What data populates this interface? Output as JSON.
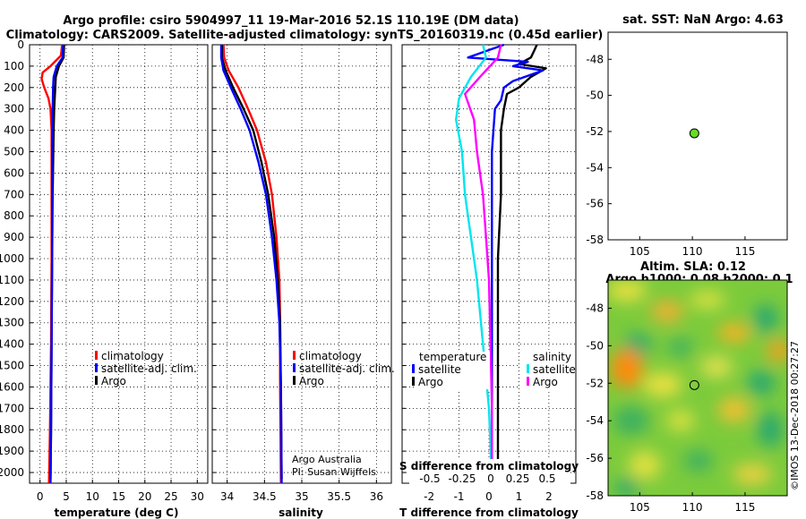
{
  "header": {
    "line1": "Argo profile: csiro 5904997_11 19-Mar-2016 52.1S 110.19E (DM data)",
    "line2": "Climatology: CARS2009. Satellite-adjusted climatology: synTS_20160319.nc (0.45d earlier)"
  },
  "colors": {
    "climatology": "#ff0000",
    "satellite": "#0000ff",
    "argo": "#000000",
    "sat_temp": "#00e5ee",
    "sat_sal": "#ff00ff",
    "marker": "#66dd22"
  },
  "depth_axis": {
    "min": 0,
    "max": 2050,
    "ticks": [
      "0",
      "100",
      "200",
      "300",
      "400",
      "500",
      "600",
      "700",
      "800",
      "900",
      "1000",
      "1100",
      "1200",
      "1300",
      "1400",
      "1500",
      "1600",
      "1700",
      "1800",
      "1900",
      "2000"
    ]
  },
  "chart_data": [
    {
      "type": "line",
      "id": "temperature",
      "xlabel": "temperature (deg C)",
      "xlim": [
        -2,
        32
      ],
      "xticks": [
        0,
        5,
        10,
        15,
        20,
        25,
        30
      ],
      "ylim": [
        0,
        2050
      ],
      "legend": {
        "placement": "middle-right",
        "entries": [
          "climatology",
          "satellite-adj. clim.",
          "Argo"
        ]
      },
      "series": [
        {
          "name": "climatology",
          "color": "#ff0000",
          "points": [
            [
              4.2,
              0
            ],
            [
              4.0,
              50
            ],
            [
              2.0,
              100
            ],
            [
              0.5,
              130
            ],
            [
              0.3,
              160
            ],
            [
              0.8,
              200
            ],
            [
              1.6,
              250
            ],
            [
              2.0,
              300
            ],
            [
              2.2,
              400
            ],
            [
              2.2,
              600
            ],
            [
              2.2,
              1000
            ],
            [
              2.1,
              1400
            ],
            [
              1.9,
              1800
            ],
            [
              1.7,
              2050
            ]
          ]
        },
        {
          "name": "Argo",
          "color": "#000000",
          "points": [
            [
              4.6,
              0
            ],
            [
              4.5,
              60
            ],
            [
              3.6,
              100
            ],
            [
              3.0,
              150
            ],
            [
              2.9,
              200
            ],
            [
              2.7,
              300
            ],
            [
              2.6,
              400
            ],
            [
              2.4,
              700
            ],
            [
              2.3,
              1000
            ],
            [
              2.2,
              1400
            ],
            [
              2.1,
              1800
            ],
            [
              2.0,
              2030
            ]
          ]
        },
        {
          "name": "satellite-adj. clim.",
          "color": "#0000ff",
          "points": [
            [
              4.4,
              0
            ],
            [
              4.3,
              60
            ],
            [
              3.2,
              100
            ],
            [
              2.6,
              150
            ],
            [
              2.5,
              200
            ],
            [
              2.4,
              300
            ],
            [
              2.3,
              500
            ],
            [
              2.3,
              1000
            ],
            [
              2.2,
              1400
            ],
            [
              2.1,
              1800
            ],
            [
              2.0,
              2050
            ]
          ]
        }
      ]
    },
    {
      "type": "line",
      "id": "salinity",
      "xlabel": "salinity",
      "xlim": [
        33.8,
        36.2
      ],
      "xticks": [
        34,
        34.5,
        35,
        35.5,
        36
      ],
      "ylim": [
        0,
        2050
      ],
      "legend": {
        "placement": "middle-right",
        "entries": [
          "climatology",
          "satellite-adj. clim.",
          "Argo"
        ]
      },
      "annotations": [
        "Argo Australia",
        "PI: Susan Wijffels"
      ],
      "series": [
        {
          "name": "climatology",
          "color": "#ff0000",
          "points": [
            [
              33.95,
              0
            ],
            [
              33.96,
              60
            ],
            [
              34.02,
              120
            ],
            [
              34.15,
              200
            ],
            [
              34.28,
              300
            ],
            [
              34.4,
              400
            ],
            [
              34.52,
              550
            ],
            [
              34.6,
              700
            ],
            [
              34.66,
              900
            ],
            [
              34.7,
              1100
            ],
            [
              34.71,
              1300
            ],
            [
              34.71,
              1600
            ],
            [
              34.72,
              2050
            ]
          ]
        },
        {
          "name": "Argo",
          "color": "#000000",
          "points": [
            [
              33.93,
              0
            ],
            [
              33.93,
              60
            ],
            [
              33.98,
              120
            ],
            [
              34.08,
              200
            ],
            [
              34.22,
              300
            ],
            [
              34.35,
              400
            ],
            [
              34.46,
              550
            ],
            [
              34.55,
              700
            ],
            [
              34.63,
              900
            ],
            [
              34.68,
              1100
            ],
            [
              34.71,
              1300
            ],
            [
              34.72,
              1600
            ],
            [
              34.73,
              2030
            ]
          ]
        },
        {
          "name": "satellite-adj. clim.",
          "color": "#0000ff",
          "points": [
            [
              33.92,
              0
            ],
            [
              33.92,
              60
            ],
            [
              33.95,
              120
            ],
            [
              34.05,
              200
            ],
            [
              34.18,
              300
            ],
            [
              34.3,
              400
            ],
            [
              34.42,
              550
            ],
            [
              34.52,
              700
            ],
            [
              34.6,
              900
            ],
            [
              34.66,
              1100
            ],
            [
              34.7,
              1300
            ],
            [
              34.72,
              1600
            ],
            [
              34.73,
              2050
            ]
          ]
        }
      ]
    },
    {
      "type": "line",
      "id": "difference",
      "xlabel": "T difference from climatology",
      "x2label": "S difference from climatology",
      "xlim": [
        -2.9,
        2.9
      ],
      "xticks": [
        -2,
        -1,
        0,
        1,
        2
      ],
      "x2ticks": [
        "-0.5",
        "-0.25",
        "0",
        "0.25",
        "0.5"
      ],
      "ylim": [
        0,
        2050
      ],
      "legend": {
        "placement": "middle",
        "temperature_title": "temperature",
        "salinity_title": "salinity",
        "entries_t": [
          "satellite",
          "Argo"
        ],
        "entries_s": [
          "satellite",
          "Argo"
        ]
      },
      "series": [
        {
          "name": "T Argo",
          "color": "#000000",
          "points": [
            [
              1.6,
              0
            ],
            [
              1.5,
              30
            ],
            [
              1.4,
              60
            ],
            [
              1.0,
              90
            ],
            [
              1.9,
              110
            ],
            [
              1.4,
              150
            ],
            [
              1.0,
              200
            ],
            [
              0.6,
              230
            ],
            [
              0.5,
              300
            ],
            [
              0.4,
              400
            ],
            [
              0.4,
              700
            ],
            [
              0.3,
              1000
            ],
            [
              0.3,
              1400
            ],
            [
              0.3,
              1800
            ],
            [
              0.3,
              2030
            ]
          ]
        },
        {
          "name": "T satellite",
          "color": "#0000ff",
          "points": [
            [
              0.5,
              0
            ],
            [
              -0.7,
              60
            ],
            [
              1.3,
              80
            ],
            [
              0.8,
              100
            ],
            [
              1.8,
              120
            ],
            [
              0.8,
              170
            ],
            [
              0.5,
              200
            ],
            [
              0.4,
              260
            ],
            [
              0.2,
              300
            ],
            [
              0.1,
              500
            ],
            [
              0.1,
              1000
            ],
            [
              0.1,
              1500
            ],
            [
              0.1,
              2050
            ]
          ]
        },
        {
          "name": "S satellite",
          "color": "#00e5ee",
          "points": [
            [
              -0.2,
              0
            ],
            [
              -0.1,
              60
            ],
            [
              -0.6,
              150
            ],
            [
              -1.0,
              250
            ],
            [
              -1.1,
              350
            ],
            [
              -0.9,
              500
            ],
            [
              -0.8,
              700
            ],
            [
              -0.6,
              900
            ],
            [
              -0.4,
              1100
            ],
            [
              -0.2,
              1400
            ],
            [
              0.0,
              1700
            ],
            [
              0.1,
              2050
            ]
          ]
        },
        {
          "name": "S Argo",
          "color": "#ff00ff",
          "points": [
            [
              0.4,
              0
            ],
            [
              0.3,
              60
            ],
            [
              -0.3,
              150
            ],
            [
              -0.8,
              230
            ],
            [
              -0.5,
              350
            ],
            [
              -0.4,
              500
            ],
            [
              -0.2,
              700
            ],
            [
              -0.1,
              900
            ],
            [
              0.0,
              1100
            ],
            [
              0.05,
              1400
            ],
            [
              0.1,
              1700
            ],
            [
              0.1,
              2030
            ]
          ]
        }
      ]
    },
    {
      "type": "scatter",
      "id": "sst-map",
      "title": "sat. SST: NaN Argo: 4.63",
      "xlim": [
        102,
        119
      ],
      "ylim": [
        -58,
        -46.5
      ],
      "xticks": [
        105,
        110,
        115
      ],
      "yticks": [
        -48,
        -50,
        -52,
        -54,
        -56,
        -58
      ],
      "points": [
        {
          "x": 110.19,
          "y": -52.1
        }
      ]
    },
    {
      "type": "heatmap",
      "id": "sla-map",
      "title": "Altim. SLA: 0.12",
      "subtitle": "Argo h1000: 0.08 h2000: 0.1",
      "xlim": [
        102,
        119
      ],
      "ylim": [
        -58,
        -46.5
      ],
      "xticks": [
        105,
        110,
        115
      ],
      "yticks": [
        -48,
        -50,
        -52,
        -54,
        -56,
        -58
      ],
      "points": [
        {
          "x": 110.19,
          "y": -52.1
        }
      ]
    }
  ],
  "footer": {
    "stamp": "©IMOS 13-Dec-2018 00:27:27"
  }
}
